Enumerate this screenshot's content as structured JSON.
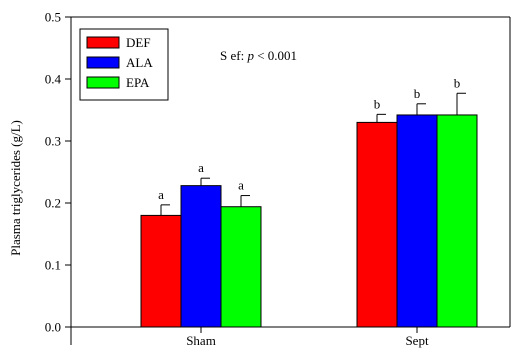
{
  "chart_data": {
    "type": "bar",
    "title": "",
    "xlabel": "",
    "ylabel": "Plasma triglycerides (g/L)",
    "ylim": [
      0,
      0.5
    ],
    "yticks": [
      "0.0",
      "0.1",
      "0.2",
      "0.3",
      "0.4",
      "0.5"
    ],
    "grid": false,
    "legend_position": "top-left",
    "categories": [
      "Sham",
      "Sept"
    ],
    "series": [
      {
        "name": "DEF",
        "color": "#ff0000",
        "values": [
          0.18,
          0.33
        ],
        "errors": [
          0.017,
          0.013
        ],
        "letters": [
          "a",
          "b"
        ]
      },
      {
        "name": "ALA",
        "color": "#0000ff",
        "values": [
          0.228,
          0.342
        ],
        "errors": [
          0.012,
          0.018
        ],
        "letters": [
          "a",
          "b"
        ]
      },
      {
        "name": "EPA",
        "color": "#00ff00",
        "values": [
          0.194,
          0.342
        ],
        "errors": [
          0.018,
          0.035
        ],
        "letters": [
          "a",
          "b"
        ]
      }
    ],
    "annotation": {
      "prefix": "S ef: ",
      "italic": "p",
      "suffix": " < 0.001"
    }
  }
}
